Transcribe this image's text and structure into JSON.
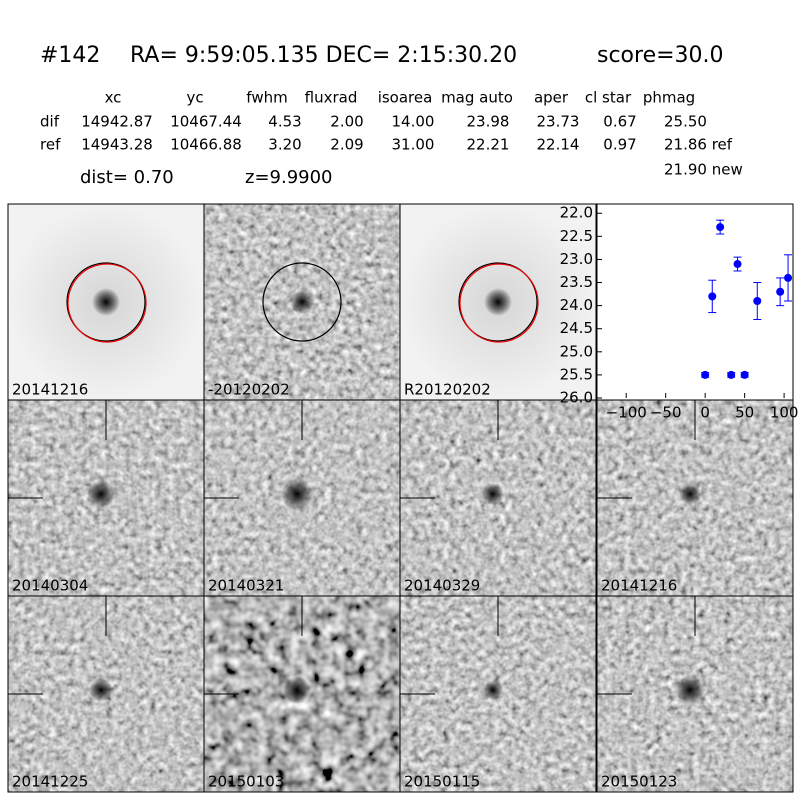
{
  "header": {
    "id": "#142",
    "coords": "RA= 9:59:05.135 DEC= 2:15:30.20",
    "score": "score=30.0"
  },
  "table": {
    "columns": [
      "xc",
      "yc",
      "fwhm",
      "fluxrad",
      "isoarea",
      "mag auto",
      "aper",
      "cl star",
      "phmag"
    ],
    "rows": [
      [
        "dif",
        "14942.87",
        "10467.44",
        "4.53",
        "2.00",
        "14.00",
        "23.98",
        "23.73",
        "0.67",
        "25.50"
      ],
      [
        "ref",
        "14943.28",
        "10466.88",
        "3.20",
        "2.09",
        "31.00",
        "22.21",
        "22.14",
        "0.97",
        "21.86 ref"
      ]
    ],
    "extra": "21.90 new"
  },
  "dist": "dist=  0.70",
  "z": "z=9.9900",
  "images": [
    {
      "label": "20141216",
      "color": "#000000"
    },
    {
      "label": "-20120202",
      "color": "#000000"
    },
    {
      "label": "R20120202",
      "color": "#000000"
    },
    {
      "label": "20140304",
      "color": "#000000"
    },
    {
      "label": "20140321",
      "color": "#000000"
    },
    {
      "label": "20140329",
      "color": "#000000"
    },
    {
      "label": "20141216",
      "color": "#ff0000"
    },
    {
      "label": "20141225",
      "color": "#000000"
    },
    {
      "label": "20150103",
      "color": "#000000"
    },
    {
      "label": "20150115",
      "color": "#000000"
    },
    {
      "label": "20150123",
      "color": "#000000"
    }
  ],
  "chart_data": {
    "type": "scatter",
    "x": [
      0,
      9,
      19,
      33,
      41,
      50,
      66,
      95,
      105
    ],
    "series": [
      {
        "color": "#0000ff",
        "values": [
          25.5,
          23.8,
          22.3,
          25.5,
          23.1,
          25.5,
          23.9,
          23.7,
          23.4
        ],
        "errors": [
          0.05,
          0.35,
          0.15,
          0.05,
          0.15,
          0.05,
          0.4,
          0.3,
          0.5
        ]
      }
    ],
    "xlim": [
      -137,
      110
    ],
    "ylim": [
      26.0,
      21.8
    ],
    "xticks": [
      {
        "value": -100,
        "label": "−100"
      },
      {
        "value": -50,
        "label": "−50"
      },
      0,
      50,
      100
    ],
    "yticks": [
      {
        "value": 22,
        "label": "22.0"
      },
      {
        "value": 22.5,
        "label": "22.5"
      },
      {
        "value": 23,
        "label": "23.0"
      },
      {
        "value": 23.5,
        "label": "23.5"
      },
      {
        "value": 24,
        "label": "24.0"
      },
      {
        "value": 24.5,
        "label": "24.5"
      },
      {
        "value": 25,
        "label": "25.0"
      },
      {
        "value": 25.5,
        "label": "25.5"
      },
      {
        "value": 26,
        "label": "26.0"
      }
    ]
  }
}
